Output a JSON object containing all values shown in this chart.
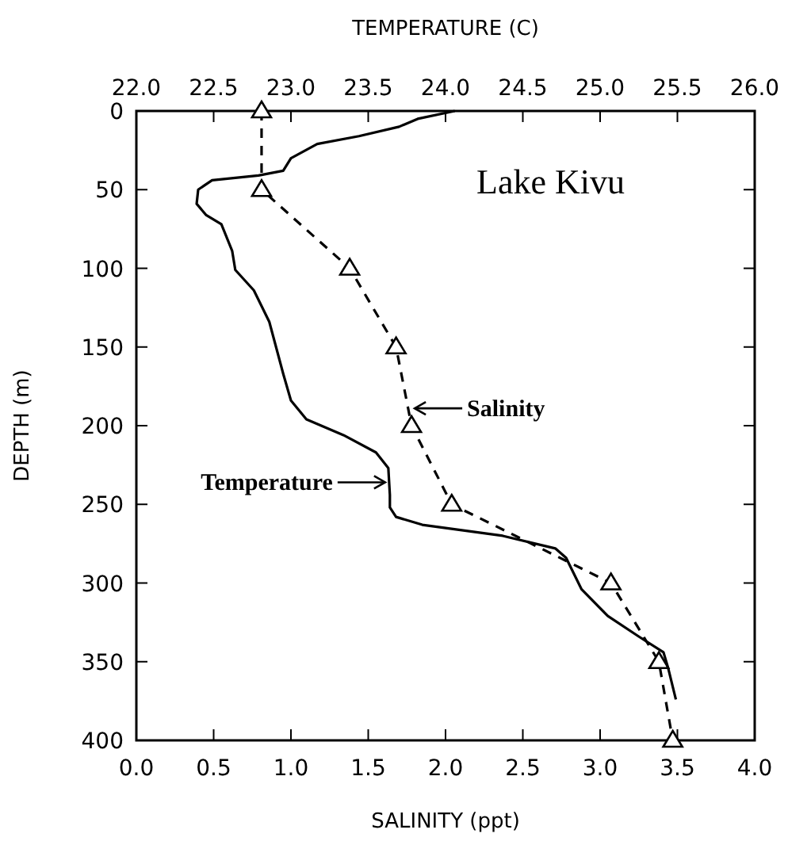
{
  "chart_data": {
    "type": "line",
    "xlabel": "SALINITY (ppt)",
    "x2label": "TEMPERATURE (C)",
    "ylabel": "DEPTH (m)",
    "xlim": [
      0,
      4
    ],
    "xticks": [
      {
        "value": 0,
        "label": "0.0"
      },
      {
        "value": 0.5,
        "label": "0.5"
      },
      {
        "value": 1,
        "label": "1.0"
      },
      {
        "value": 1.5,
        "label": "1.5"
      },
      {
        "value": 2,
        "label": "2.0"
      },
      {
        "value": 2.5,
        "label": "2.5"
      },
      {
        "value": 3,
        "label": "3.0"
      },
      {
        "value": 3.5,
        "label": "3.5"
      },
      {
        "value": 4,
        "label": "4.0"
      }
    ],
    "x2lim": [
      22,
      26
    ],
    "x2ticks": [
      {
        "value": 22,
        "label": "22.0"
      },
      {
        "value": 22.5,
        "label": "22.5"
      },
      {
        "value": 23,
        "label": "23.0"
      },
      {
        "value": 23.5,
        "label": "23.5"
      },
      {
        "value": 24,
        "label": "24.0"
      },
      {
        "value": 24.5,
        "label": "24.5"
      },
      {
        "value": 25,
        "label": "25.0"
      },
      {
        "value": 25.5,
        "label": "25.5"
      },
      {
        "value": 26,
        "label": "26.0"
      }
    ],
    "ylim": [
      400,
      0
    ],
    "yticks": [
      0,
      50,
      100,
      150,
      200,
      250,
      300,
      350,
      400
    ],
    "grid": false,
    "series": [
      {
        "color": "#000000",
        "line_style": "dashed",
        "marker": "triangle",
        "x": [
          0.81,
          0.81,
          1.38,
          1.68,
          1.78,
          2.04,
          3.07,
          3.38,
          3.47
        ],
        "values": [
          0,
          50,
          100,
          150,
          200,
          250,
          300,
          350,
          400
        ]
      },
      {
        "color": "#000000",
        "line_style": "solid",
        "marker": "none",
        "axis": "x2",
        "x": [
          24.06,
          23.82,
          23.7,
          23.44,
          23.17,
          23.0,
          22.95,
          22.79,
          22.49,
          22.4,
          22.39,
          22.45,
          22.55,
          22.62,
          22.64,
          22.76,
          22.86,
          22.95,
          23.0,
          23.1,
          23.34,
          23.55,
          23.63,
          23.64,
          23.64,
          23.68,
          23.85,
          24.37,
          24.71,
          24.78,
          24.88,
          25.05,
          25.25,
          25.41,
          25.44,
          25.49
        ],
        "values": [
          0,
          5,
          10,
          16,
          21,
          30,
          38,
          41,
          44,
          50,
          59,
          66,
          72,
          89,
          101,
          114,
          134,
          167,
          184,
          196,
          206,
          217,
          227,
          244,
          252,
          258,
          263,
          270,
          278,
          284,
          304,
          321,
          334,
          344,
          354,
          374
        ]
      }
    ],
    "annotations": [
      "Lake Kivu",
      {
        "text": "Salinity",
        "x": 1.78,
        "y": 189
      },
      {
        "text": "Temperature",
        "x": 1.63,
        "y": 236
      }
    ]
  }
}
